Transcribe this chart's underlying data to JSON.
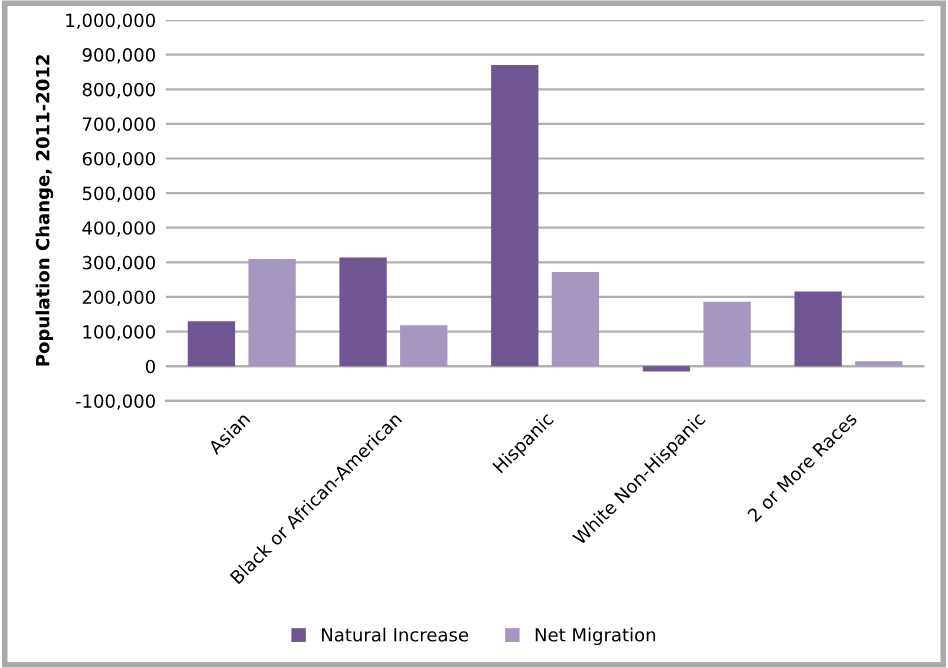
{
  "chart_data": {
    "type": "bar",
    "ylabel": "Population Change, 2011-2012",
    "categories": [
      "Asian",
      "Black or African-American",
      "Hispanic",
      "White Non-Hispanic",
      "2 or More Races"
    ],
    "series": [
      {
        "name": "Natural Increase",
        "color": "#6f5592",
        "values": [
          130000,
          314000,
          870000,
          -15000,
          216000
        ]
      },
      {
        "name": "Net Migration",
        "color": "#a597bf",
        "values": [
          310000,
          118000,
          272000,
          186000,
          14000
        ]
      }
    ],
    "ylim": [
      -100000,
      1000000
    ],
    "yticks": [
      {
        "value": -100000,
        "label": "-100,000"
      },
      {
        "value": 0,
        "label": "0"
      },
      {
        "value": 100000,
        "label": "100,000"
      },
      {
        "value": 200000,
        "label": "200,000"
      },
      {
        "value": 300000,
        "label": "300,000"
      },
      {
        "value": 400000,
        "label": "400,000"
      },
      {
        "value": 500000,
        "label": "500,000"
      },
      {
        "value": 600000,
        "label": "600,000"
      },
      {
        "value": 700000,
        "label": "700,000"
      },
      {
        "value": 800000,
        "label": "800,000"
      },
      {
        "value": 900000,
        "label": "900,000"
      },
      {
        "value": 1000000,
        "label": "1,000,000"
      }
    ],
    "grid": "y",
    "legend": "bottom"
  }
}
